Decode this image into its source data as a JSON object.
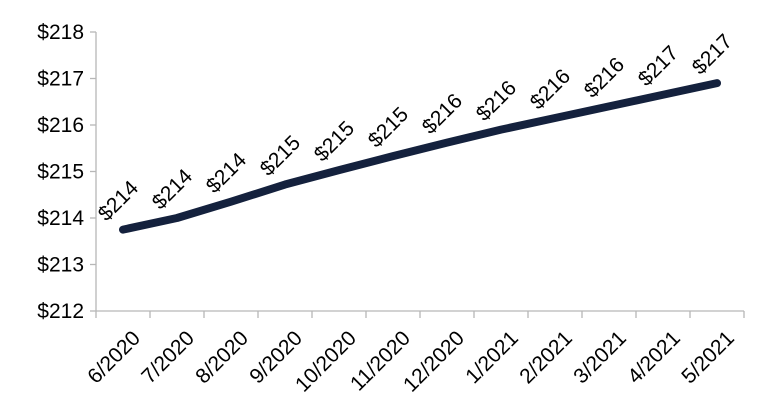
{
  "chart_data": {
    "type": "line",
    "title": "",
    "xlabel": "",
    "ylabel": "",
    "categories": [
      "6/2020",
      "7/2020",
      "8/2020",
      "9/2020",
      "10/2020",
      "11/2020",
      "12/2020",
      "1/2021",
      "2/2021",
      "3/2021",
      "4/2021",
      "5/2021"
    ],
    "series": [
      {
        "values": [
          213.75,
          214.0,
          214.35,
          214.72,
          215.03,
          215.33,
          215.62,
          215.9,
          216.15,
          216.4,
          216.65,
          216.9
        ],
        "data_labels": [
          "$214",
          "$214",
          "$214",
          "$215",
          "$215",
          "$215",
          "$216",
          "$216",
          "$216",
          "$216",
          "$217",
          "$217"
        ],
        "color": "#14213d"
      }
    ],
    "ylim": [
      212,
      218
    ],
    "yticks": [
      212,
      213,
      214,
      215,
      216,
      217,
      218
    ],
    "ytick_labels": [
      "$212",
      "$213",
      "$214",
      "$215",
      "$216",
      "$217",
      "$218"
    ],
    "grid": false,
    "legend": "none"
  }
}
